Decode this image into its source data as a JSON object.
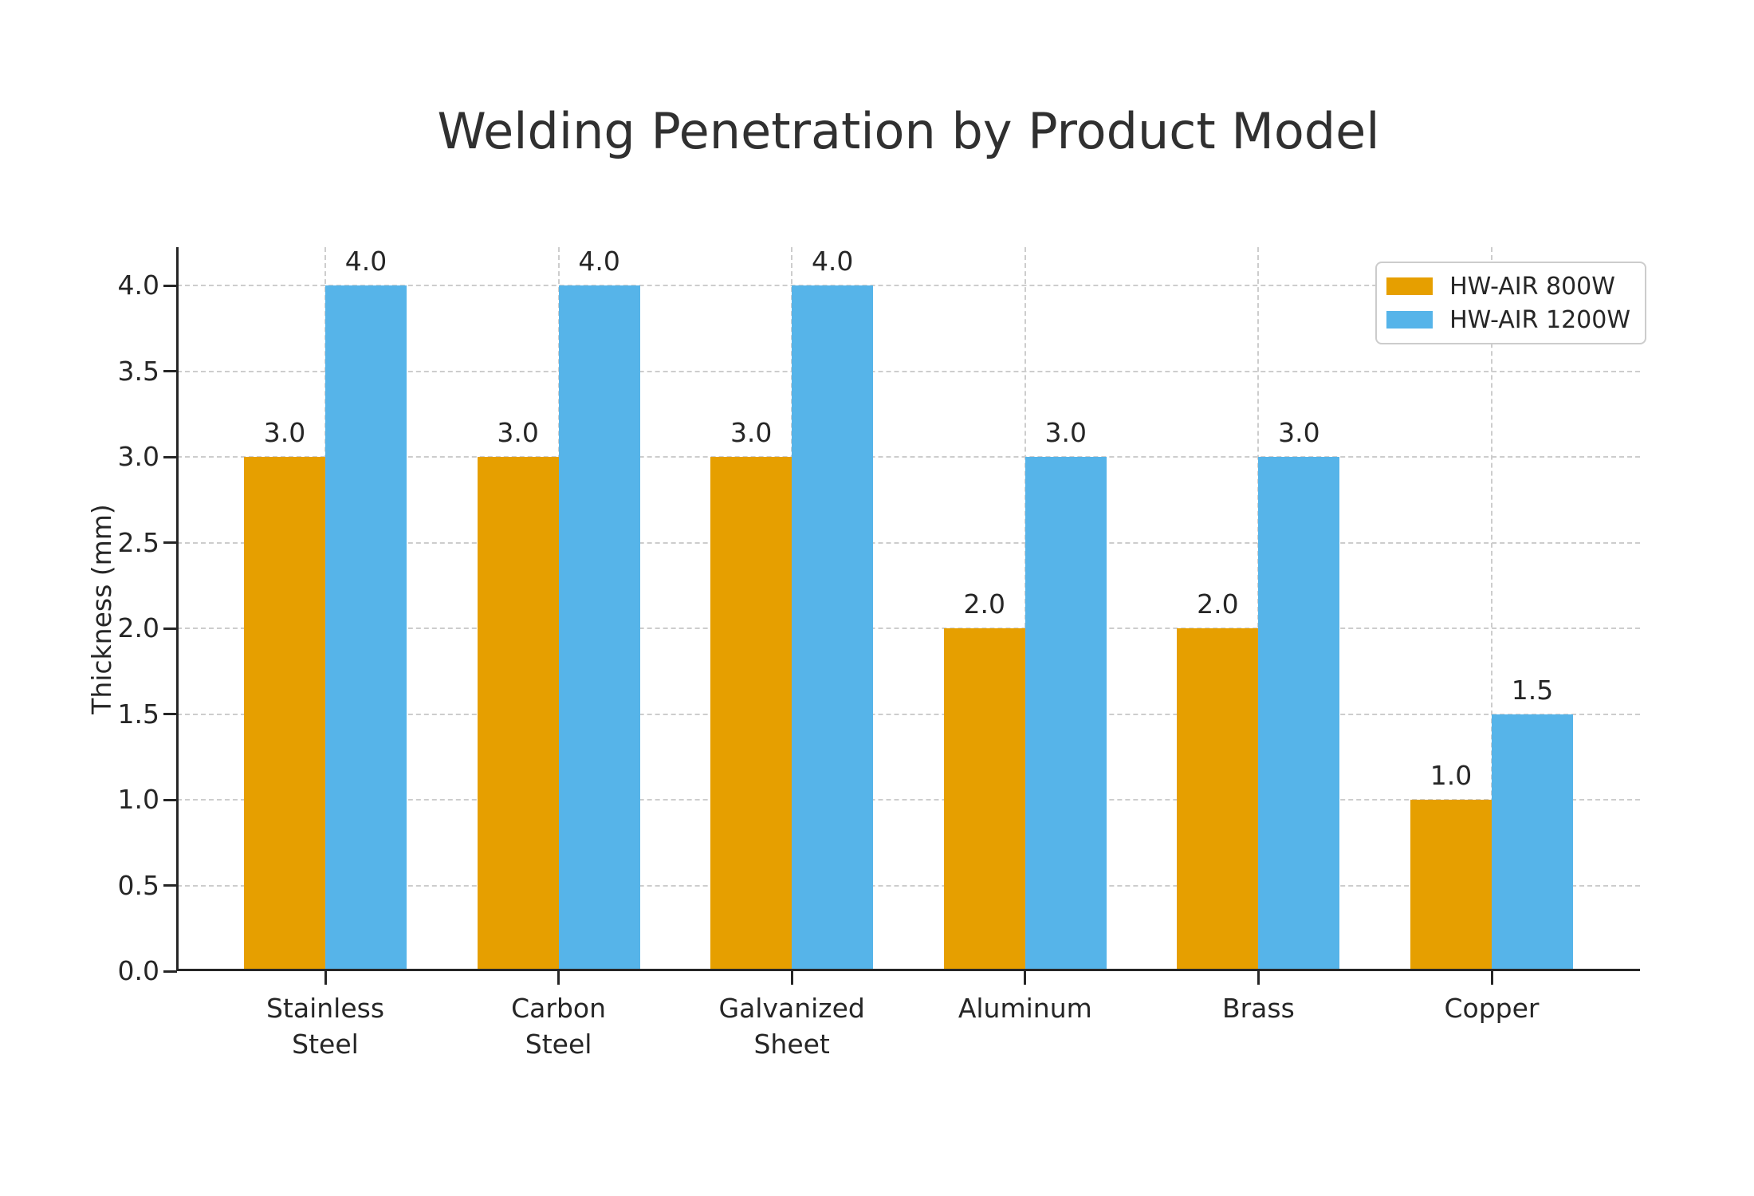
{
  "chart_data": {
    "type": "bar",
    "title": "Welding Penetration by Product Model",
    "xlabel": "",
    "ylabel": "Thickness (mm)",
    "categories": [
      "Stainless\nSteel",
      "Carbon\nSteel",
      "Galvanized\nSheet",
      "Aluminum",
      "Brass",
      "Copper"
    ],
    "series": [
      {
        "name": "HW-AIR 800W",
        "color": "#E69F00",
        "values": [
          3.0,
          3.0,
          3.0,
          2.0,
          2.0,
          1.0
        ]
      },
      {
        "name": "HW-AIR 1200W",
        "color": "#56B4E9",
        "values": [
          4.0,
          4.0,
          4.0,
          3.0,
          3.0,
          1.5
        ]
      }
    ],
    "y_ticks": [
      0.0,
      0.5,
      1.0,
      1.5,
      2.0,
      2.5,
      3.0,
      3.5,
      4.0
    ],
    "ylim": [
      0,
      4.22
    ],
    "grid": "dashed",
    "bar_value_labels": true,
    "legend_position": "upper right",
    "colors": {
      "axis": "#262626",
      "gridline": "#cdcdcd",
      "background": "#ffffff",
      "text": "#303030"
    }
  }
}
